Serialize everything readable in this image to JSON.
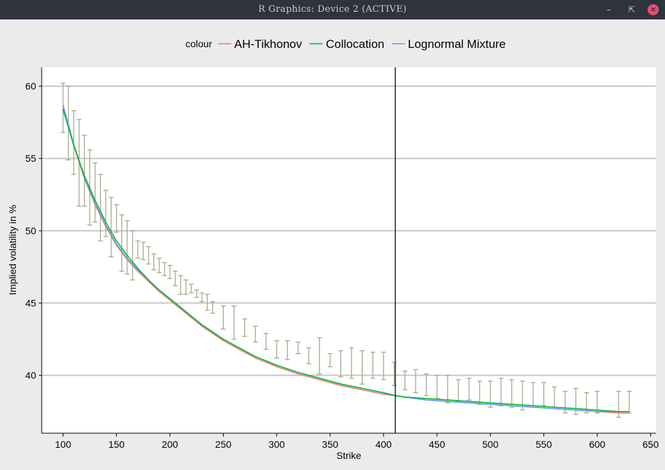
{
  "window": {
    "title": "R Graphics: Device 2 (ACTIVE)",
    "minimize_icon": "minimize-icon",
    "maximize_icon": "maximize-icon",
    "close_icon": "close-icon"
  },
  "colors": {
    "background": "#ebebeb",
    "panel": "#ffffff",
    "grid": "#c8c8c8",
    "ah_tikhonov": "#f8766d",
    "collocation": "#00ba38",
    "lognormal": "#619cff",
    "errorbar": "#a5a98c",
    "vline": "#000000"
  },
  "chart_data": {
    "type": "line",
    "xlabel": "Strike",
    "ylabel": "Implied volatility in %",
    "xlim": [
      80,
      655
    ],
    "ylim": [
      36,
      61.3
    ],
    "xticks": [
      100,
      150,
      200,
      250,
      300,
      350,
      400,
      450,
      500,
      550,
      600,
      650
    ],
    "yticks": [
      40,
      45,
      50,
      55,
      60
    ],
    "grid": "horizontal-major",
    "legend": {
      "title": "colour",
      "position": "top",
      "entries": [
        "AH-Tikhonov",
        "Collocation",
        "Lognormal Mixture"
      ]
    },
    "vline_x": 411,
    "errorbars": {
      "x": [
        100,
        105,
        110,
        115,
        120,
        125,
        130,
        135,
        140,
        145,
        150,
        155,
        160,
        165,
        170,
        175,
        180,
        185,
        190,
        195,
        200,
        205,
        210,
        215,
        220,
        225,
        230,
        235,
        240,
        250,
        260,
        270,
        280,
        290,
        300,
        310,
        320,
        330,
        340,
        350,
        360,
        370,
        380,
        390,
        400,
        410,
        420,
        430,
        440,
        450,
        460,
        470,
        480,
        490,
        500,
        510,
        520,
        530,
        540,
        550,
        560,
        570,
        580,
        590,
        600,
        620,
        630
      ],
      "ymin": [
        56.8,
        54.9,
        53.9,
        51.7,
        51.7,
        50.4,
        50.6,
        49.3,
        49.6,
        48.2,
        49.9,
        47.2,
        47.0,
        46.6,
        48.1,
        48.0,
        47.7,
        47.3,
        47.1,
        46.9,
        46.7,
        46.2,
        45.6,
        45.6,
        45.7,
        45.4,
        45.1,
        44.5,
        44.3,
        43.2,
        42.5,
        42.7,
        42.3,
        41.8,
        41.2,
        41.1,
        41.5,
        40.8,
        40.1,
        40.6,
        39.9,
        39.8,
        39.4,
        39.8,
        39.7,
        39.3,
        39.0,
        38.8,
        38.6,
        38.4,
        38.1,
        38.2,
        38.3,
        38.0,
        37.8,
        37.9,
        37.8,
        37.6,
        37.8,
        37.9,
        37.8,
        37.4,
        37.3,
        37.4,
        37.4,
        37.1,
        37.4
      ],
      "ymax": [
        60.2,
        60.0,
        58.3,
        57.7,
        56.6,
        55.6,
        54.7,
        53.9,
        52.8,
        52.3,
        51.8,
        51.1,
        50.7,
        50.0,
        49.3,
        49.2,
        48.9,
        48.4,
        48.1,
        47.8,
        47.6,
        47.2,
        46.9,
        46.6,
        46.3,
        45.9,
        45.7,
        45.6,
        45.1,
        44.8,
        44.8,
        43.9,
        43.4,
        42.9,
        42.4,
        42.4,
        42.3,
        41.9,
        42.6,
        41.5,
        41.7,
        41.9,
        41.7,
        41.6,
        41.6,
        40.9,
        40.3,
        40.4,
        40.1,
        40.0,
        40.0,
        39.7,
        39.8,
        39.6,
        39.6,
        39.8,
        39.7,
        39.6,
        39.5,
        39.5,
        39.2,
        38.9,
        39.1,
        38.8,
        38.9,
        38.9,
        38.9
      ]
    },
    "x": [
      100,
      110,
      120,
      130,
      140,
      150,
      160,
      170,
      180,
      190,
      200,
      210,
      220,
      230,
      240,
      250,
      260,
      270,
      280,
      290,
      300,
      320,
      340,
      360,
      380,
      400,
      411,
      420,
      440,
      460,
      480,
      500,
      520,
      540,
      560,
      580,
      600,
      620,
      630
    ],
    "series": [
      {
        "name": "AH-Tikhonov",
        "values": [
          58.5,
          55.9,
          53.6,
          51.8,
          50.3,
          49.0,
          48.0,
          47.2,
          46.5,
          45.8,
          45.2,
          44.6,
          44.0,
          43.4,
          42.9,
          42.4,
          42.0,
          41.6,
          41.2,
          40.9,
          40.6,
          40.1,
          39.7,
          39.3,
          39.0,
          38.7,
          38.6,
          38.5,
          38.3,
          38.2,
          38.1,
          38.0,
          37.9,
          37.8,
          37.7,
          37.6,
          37.5,
          37.4,
          37.4
        ]
      },
      {
        "name": "Collocation",
        "values": [
          58.4,
          55.9,
          53.8,
          52.1,
          50.6,
          49.3,
          48.3,
          47.4,
          46.6,
          45.9,
          45.3,
          44.7,
          44.1,
          43.5,
          43.0,
          42.5,
          42.1,
          41.7,
          41.3,
          41.0,
          40.7,
          40.2,
          39.8,
          39.4,
          39.1,
          38.8,
          38.6,
          38.5,
          38.4,
          38.3,
          38.2,
          38.1,
          38.0,
          37.9,
          37.8,
          37.7,
          37.6,
          37.5,
          37.5
        ]
      },
      {
        "name": "Lognormal Mixture",
        "values": [
          58.7,
          56.0,
          53.7,
          51.9,
          50.4,
          49.1,
          48.1,
          47.3,
          46.6,
          45.9,
          45.3,
          44.7,
          44.1,
          43.5,
          43.0,
          42.5,
          42.1,
          41.7,
          41.3,
          41.0,
          40.7,
          40.2,
          39.8,
          39.4,
          39.1,
          38.8,
          38.6,
          38.5,
          38.3,
          38.2,
          38.1,
          38.0,
          37.9,
          37.8,
          37.7,
          37.6,
          37.5,
          37.5,
          37.5
        ]
      }
    ]
  }
}
